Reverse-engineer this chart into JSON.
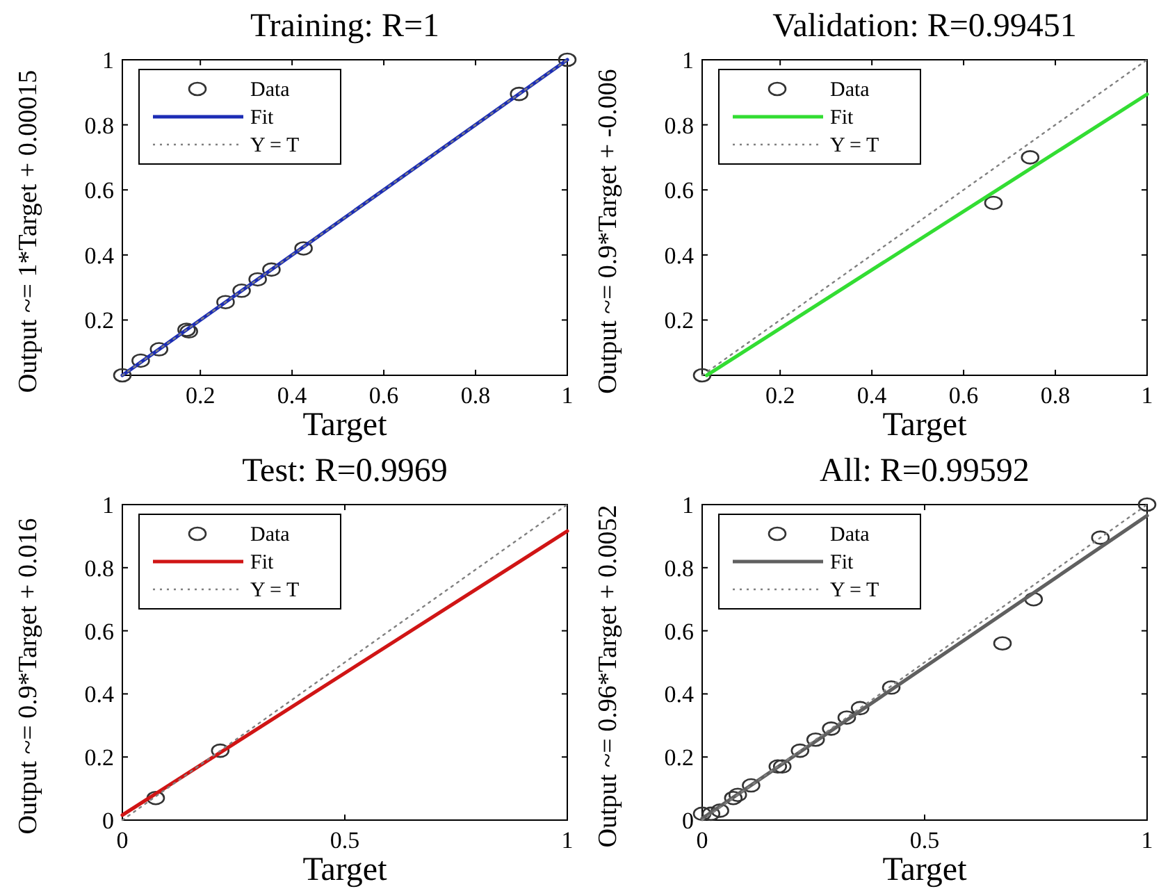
{
  "chart_data": [
    {
      "type": "scatter",
      "title": "Training: R=1",
      "xlabel": "Target",
      "ylabel": "Output ~= 1*Target + 0.00015",
      "xlim": [
        0.03,
        1
      ],
      "ylim": [
        0.03,
        1
      ],
      "xticks": [
        0.2,
        0.4,
        0.6,
        0.8,
        1
      ],
      "yticks": [
        0.2,
        0.4,
        0.6,
        0.8,
        1
      ],
      "legend": "top left",
      "series": [
        {
          "name": "Data",
          "type": "scatter",
          "marker": "circle",
          "color": "#333333",
          "x": [
            0.03,
            0.07,
            0.11,
            0.17,
            0.175,
            0.255,
            0.29,
            0.325,
            0.355,
            0.425,
            0.895,
            1
          ],
          "values": [
            0.03,
            0.075,
            0.11,
            0.17,
            0.165,
            0.255,
            0.29,
            0.325,
            0.355,
            0.42,
            0.895,
            1
          ]
        },
        {
          "name": "Fit",
          "type": "line",
          "line_style": "solid",
          "color": "#1c2db5",
          "x": [
            0.03,
            1
          ],
          "values": [
            0.03,
            1
          ]
        },
        {
          "name": "Y = T",
          "type": "line",
          "marker": "none",
          "line_style": "dotted",
          "color": "#808080",
          "x": [
            0.03,
            1
          ],
          "values": [
            0.03,
            1
          ]
        }
      ]
    },
    {
      "type": "scatter",
      "title": "Validation: R=0.99451",
      "xlabel": "Target",
      "ylabel": "Output ~= 0.9*Target + -0.006",
      "xlim": [
        0.03,
        1
      ],
      "ylim": [
        0.03,
        1
      ],
      "xticks": [
        0.2,
        0.4,
        0.6,
        0.8,
        1
      ],
      "yticks": [
        0.2,
        0.4,
        0.6,
        0.8,
        1
      ],
      "legend": "top left",
      "series": [
        {
          "name": "Data",
          "type": "scatter",
          "marker": "circle",
          "color": "#333333",
          "x": [
            0.03,
            0.665,
            0.745
          ],
          "values": [
            0.03,
            0.56,
            0.7
          ]
        },
        {
          "name": "Fit",
          "type": "line",
          "line_style": "solid",
          "color": "#33dd33",
          "x": [
            0.04,
            1
          ],
          "values": [
            0.03,
            0.894
          ]
        },
        {
          "name": "Y = T",
          "type": "line",
          "marker": "none",
          "line_style": "dotted",
          "color": "#808080",
          "x": [
            0.03,
            1
          ],
          "values": [
            0.03,
            1
          ]
        }
      ]
    },
    {
      "type": "scatter",
      "title": "Test: R=0.9969",
      "xlabel": "Target",
      "ylabel": "Output ~= 0.9*Target + 0.016",
      "xlim": [
        0,
        1
      ],
      "ylim": [
        0,
        1
      ],
      "xticks": [
        0,
        0.5,
        1
      ],
      "yticks": [
        0,
        0.2,
        0.4,
        0.6,
        0.8,
        1
      ],
      "legend": "top left",
      "series": [
        {
          "name": "Data",
          "type": "scatter",
          "marker": "circle",
          "color": "#333333",
          "x": [
            0.075,
            0.22
          ],
          "values": [
            0.07,
            0.22
          ]
        },
        {
          "name": "Fit",
          "type": "line",
          "line_style": "solid",
          "color": "#d01515",
          "x": [
            0,
            1
          ],
          "values": [
            0.016,
            0.916
          ]
        },
        {
          "name": "Y = T",
          "type": "line",
          "marker": "none",
          "line_style": "dotted",
          "color": "#808080",
          "x": [
            0,
            1
          ],
          "values": [
            0,
            1
          ]
        }
      ]
    },
    {
      "type": "scatter",
      "title": "All: R=0.99592",
      "xlabel": "Target",
      "ylabel": "Output ~= 0.96*Target + 0.0052",
      "xlim": [
        0,
        1
      ],
      "ylim": [
        0,
        1
      ],
      "xticks": [
        0,
        0.5,
        1
      ],
      "yticks": [
        0,
        0.2,
        0.4,
        0.6,
        0.8,
        1
      ],
      "legend": "top left",
      "series": [
        {
          "name": "Data",
          "type": "scatter",
          "marker": "circle",
          "color": "#333333",
          "x": [
            0,
            0.02,
            0.04,
            0.07,
            0.08,
            0.11,
            0.17,
            0.18,
            0.22,
            0.255,
            0.29,
            0.325,
            0.355,
            0.425,
            0.675,
            0.745,
            0.895,
            1
          ],
          "values": [
            0.02,
            0.02,
            0.03,
            0.07,
            0.08,
            0.11,
            0.17,
            0.17,
            0.22,
            0.255,
            0.29,
            0.325,
            0.355,
            0.42,
            0.56,
            0.7,
            0.895,
            1
          ]
        },
        {
          "name": "Fit",
          "type": "line",
          "line_style": "solid",
          "color": "#606060",
          "x": [
            0,
            1
          ],
          "values": [
            0.005,
            0.965
          ]
        },
        {
          "name": "Y = T",
          "type": "line",
          "marker": "none",
          "line_style": "dotted",
          "color": "#808080",
          "x": [
            0,
            1
          ],
          "values": [
            0,
            1
          ]
        }
      ]
    }
  ]
}
